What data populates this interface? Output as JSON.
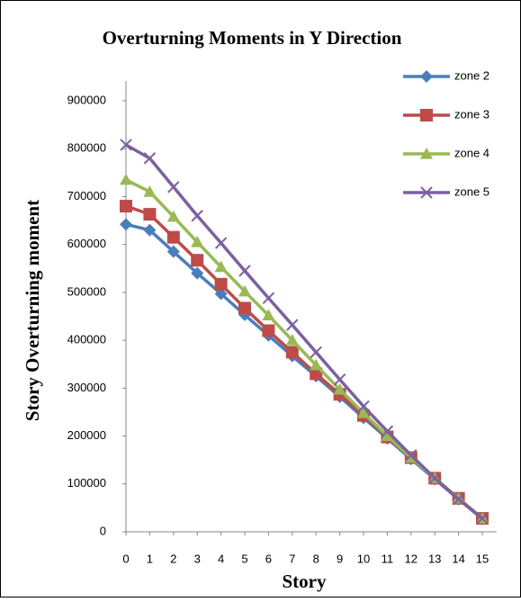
{
  "chart_data": {
    "type": "line",
    "title": "Overturning Moments in Y Direction",
    "x_label": "Story",
    "y_label": "Story Overturning moment",
    "x": [
      0,
      1,
      2,
      3,
      4,
      5,
      6,
      7,
      8,
      9,
      10,
      11,
      12,
      13,
      14,
      15
    ],
    "xlim": [
      0,
      15
    ],
    "xticks": [
      0,
      1,
      2,
      3,
      4,
      5,
      6,
      7,
      8,
      9,
      10,
      11,
      12,
      13,
      14,
      15
    ],
    "ylim": [
      0,
      900000
    ],
    "yticks": [
      0,
      100000,
      200000,
      300000,
      400000,
      500000,
      600000,
      700000,
      800000,
      900000
    ],
    "grid": false,
    "legend": "right",
    "series": [
      {
        "name": "zone 2",
        "color": "#4a7ebb",
        "marker": "diamond",
        "values": [
          642000,
          630000,
          585000,
          540000,
          497000,
          453000,
          410000,
          367000,
          325000,
          282000,
          238000,
          195000,
          152000,
          110000,
          68000,
          27000
        ]
      },
      {
        "name": "zone 3",
        "color": "#be4b48",
        "marker": "square",
        "values": [
          680000,
          663000,
          615000,
          567000,
          517000,
          467000,
          420000,
          375000,
          330000,
          287000,
          243000,
          198000,
          155000,
          112000,
          70000,
          28000
        ]
      },
      {
        "name": "zone 4",
        "color": "#98b954",
        "marker": "triangle",
        "values": [
          735000,
          710000,
          658000,
          605000,
          553000,
          502000,
          452000,
          400000,
          348000,
          297000,
          248000,
          200000,
          155000,
          112000,
          70000,
          28000
        ]
      },
      {
        "name": "zone 5",
        "color": "#7d60a0",
        "marker": "x",
        "values": [
          808000,
          780000,
          720000,
          660000,
          603000,
          545000,
          488000,
          432000,
          375000,
          318000,
          262000,
          210000,
          160000,
          112000,
          68000,
          28000
        ]
      }
    ]
  }
}
